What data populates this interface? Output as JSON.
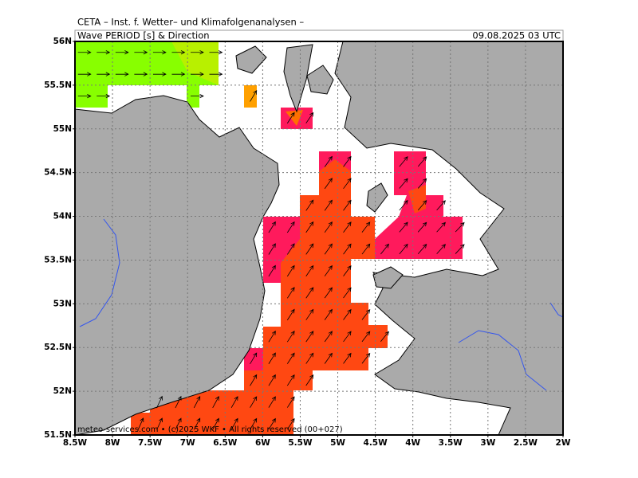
{
  "header": {
    "title": "CETA – Inst. f. Wetter– und Klimafolgenanalysen –",
    "subtitle": "Wave PERIOD [s] & Direction",
    "timestamp": "09.08.2025 03 UTC"
  },
  "footer": "meteo-services.com • (c)2025 WKF • All rights reserved (00+027)",
  "axes": {
    "lat_labels": [
      "56N",
      "55.5N",
      "55N",
      "54.5N",
      "54N",
      "53.5N",
      "53N",
      "52.5N",
      "52N",
      "51.5N"
    ],
    "lon_labels": [
      "8.5W",
      "8W",
      "7.5W",
      "7W",
      "6.5W",
      "6W",
      "5.5W",
      "5W",
      "4.5W",
      "4W",
      "3.5W",
      "3W",
      "2.5W",
      "2W"
    ]
  }
}
